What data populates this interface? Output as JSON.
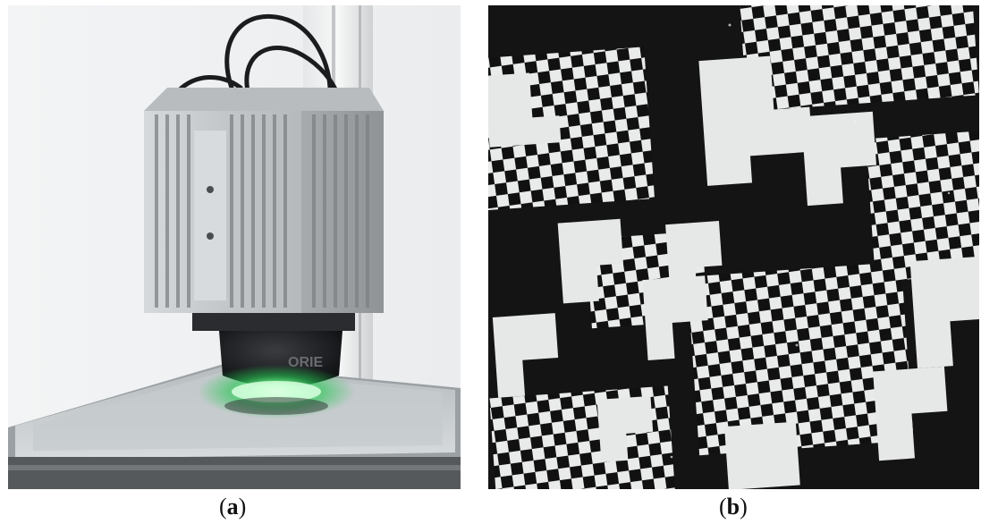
{
  "figure": {
    "panels": [
      {
        "id": "a",
        "caption_open": "(",
        "caption_letter": "a",
        "caption_close": ")",
        "lens_text": "ORIE",
        "colors": {
          "led_glow": "#39e86a",
          "housing": "#c9ccce",
          "lens": "#1a1b1d"
        }
      },
      {
        "id": "b",
        "caption_open": "(",
        "caption_letter": "b",
        "caption_close": ")",
        "colors": {
          "white_cell": "#e9eaea",
          "black_cell": "#111111"
        }
      }
    ]
  }
}
